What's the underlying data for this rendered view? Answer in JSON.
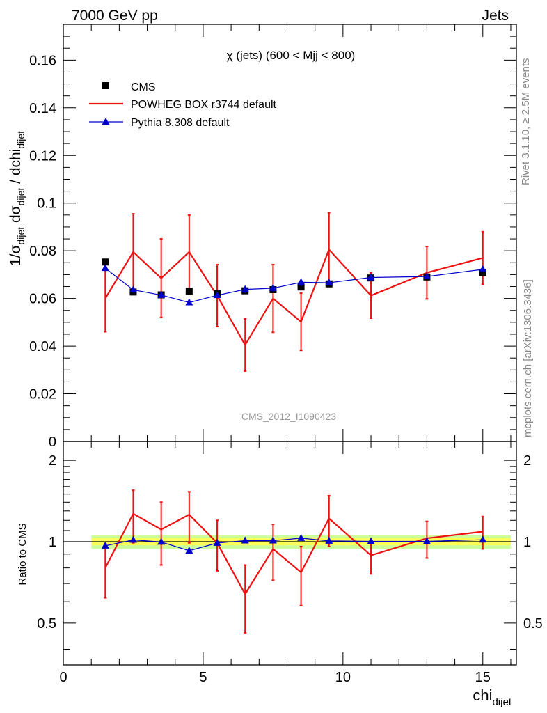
{
  "header": {
    "left": "7000 GeV pp",
    "right": "Jets"
  },
  "side_labels": {
    "rivet": "Rivet 3.1.10, ≥ 2.5M events",
    "mcplots": "mcplots.cern.ch [arXiv:1306.3436]"
  },
  "colors": {
    "data": "#000000",
    "powheg": "#ee1111",
    "pythia": "#0000cc",
    "band_inner": "#ffff55",
    "band_outer": "#ccff99"
  },
  "chart_data": [
    {
      "type": "scatter",
      "panel": "main",
      "title": "χ (jets) (600 < Mjj <  800)",
      "watermark": "CMS_2012_I1090423",
      "ylabel": "1/σdijet dσdijet / dchidijet",
      "xlim": [
        0,
        16.2
      ],
      "ylim": [
        0,
        0.175
      ],
      "yticks": [
        {
          "v": 0,
          "t": "0"
        },
        {
          "v": 0.02,
          "t": "0.02"
        },
        {
          "v": 0.04,
          "t": "0.04"
        },
        {
          "v": 0.06,
          "t": "0.06"
        },
        {
          "v": 0.08,
          "t": "0.08"
        },
        {
          "v": 0.1,
          "t": "0.1"
        },
        {
          "v": 0.12,
          "t": "0.12"
        },
        {
          "v": 0.14,
          "t": "0.14"
        },
        {
          "v": 0.16,
          "t": "0.16"
        }
      ],
      "legend_position": "top-left",
      "x": [
        1.5,
        2.5,
        3.5,
        4.5,
        5.5,
        6.5,
        7.5,
        8.5,
        9.5,
        11,
        13,
        15
      ],
      "x_edges": [
        1,
        2,
        3,
        4,
        5,
        6,
        7,
        8,
        9,
        10,
        12,
        14,
        16
      ],
      "series": [
        {
          "name": "CMS",
          "key": "cms",
          "marker": "square",
          "values": [
            0.0753,
            0.0627,
            0.0615,
            0.063,
            0.062,
            0.0632,
            0.0637,
            0.0648,
            0.0661,
            0.0686,
            0.069,
            0.071
          ]
        },
        {
          "name": "POWHEG BOX r3744 default",
          "key": "powheg",
          "marker": "line",
          "values": [
            0.06,
            0.0795,
            0.0685,
            0.0795,
            0.0612,
            0.0405,
            0.06,
            0.0502,
            0.0805,
            0.0612,
            0.0708,
            0.077
          ],
          "err": [
            0.014,
            0.016,
            0.0165,
            0.0155,
            0.013,
            0.011,
            0.0142,
            0.012,
            0.0155,
            0.0095,
            0.011,
            0.011
          ]
        },
        {
          "name": "Pythia 8.308 default",
          "key": "pythia",
          "marker": "triangle",
          "values": [
            0.0727,
            0.0636,
            0.0614,
            0.0583,
            0.0613,
            0.0638,
            0.0643,
            0.0668,
            0.0666,
            0.0688,
            0.0692,
            0.0722
          ],
          "err": [
            0.001,
            0.001,
            0.001,
            0.0012,
            0.001,
            0.0015,
            0.0014,
            0.0016,
            0.0012,
            0.001,
            0.001,
            0.0012
          ]
        }
      ]
    },
    {
      "type": "scatter",
      "panel": "ratio",
      "ylabel": "Ratio to CMS",
      "xlabel": "chidijet",
      "xlim": [
        0,
        16.2
      ],
      "ylim": [
        0.35,
        2.35
      ],
      "yticks": [
        {
          "v": 0.5,
          "t": "0.5"
        },
        {
          "v": 1,
          "t": "1"
        },
        {
          "v": 2,
          "t": "2"
        }
      ],
      "xticks": [
        {
          "v": 0,
          "t": "0"
        },
        {
          "v": 5,
          "t": "5"
        },
        {
          "v": 10,
          "t": "10"
        },
        {
          "v": 15,
          "t": "15"
        }
      ],
      "band_inner": 0.03,
      "band_outer": 0.06,
      "x": [
        1.5,
        2.5,
        3.5,
        4.5,
        5.5,
        6.5,
        7.5,
        8.5,
        9.5,
        11,
        13,
        15
      ],
      "series": [
        {
          "name": "POWHEG BOX r3744 default",
          "key": "powheg",
          "values": [
            0.8,
            1.27,
            1.11,
            1.26,
            0.99,
            0.64,
            0.94,
            0.77,
            1.22,
            0.89,
            1.03,
            1.09
          ],
          "err": [
            0.18,
            0.28,
            0.29,
            0.27,
            0.21,
            0.18,
            0.22,
            0.19,
            0.26,
            0.13,
            0.16,
            0.15
          ]
        },
        {
          "name": "Pythia 8.308 default",
          "key": "pythia",
          "values": [
            0.966,
            1.015,
            0.998,
            0.926,
            0.989,
            1.009,
            1.009,
            1.031,
            1.007,
            1.003,
            1.003,
            1.017
          ],
          "err": [
            0.014,
            0.016,
            0.016,
            0.019,
            0.016,
            0.023,
            0.022,
            0.025,
            0.018,
            0.014,
            0.014,
            0.017
          ]
        }
      ]
    }
  ]
}
